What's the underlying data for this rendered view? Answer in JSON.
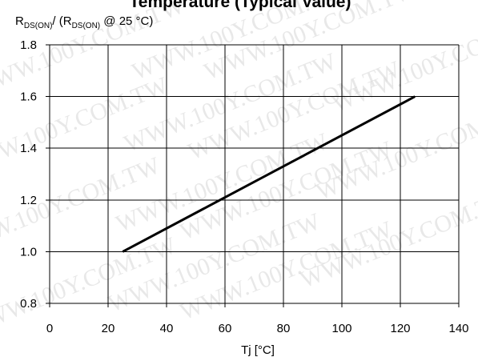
{
  "title": "Temperature (Typical Value)",
  "watermark_text": "WWW.100Y.COM.TW",
  "y_axis_title": {
    "r1": "R",
    "sub1": "DS(ON)",
    "mid": "/ (R",
    "sub2": "DS(ON)",
    "tail": " @ 25 °C)"
  },
  "x_axis_title": "Tj [°C]",
  "colors": {
    "line": "#000000",
    "grid": "#000000",
    "watermark": "#d7d7d7",
    "background": "#ffffff"
  },
  "chart_data": {
    "type": "line",
    "title": "Temperature (Typical Value)",
    "xlabel": "Tj [°C]",
    "ylabel": "RDS(ON) / (RDS(ON) @ 25 °C)",
    "xlim": [
      0,
      140
    ],
    "ylim": [
      0.8,
      1.8
    ],
    "x_ticks": [
      0,
      20,
      40,
      60,
      80,
      100,
      120,
      140
    ],
    "y_ticks": [
      0.8,
      1.0,
      1.2,
      1.4,
      1.6,
      1.8
    ],
    "x_tick_labels": [
      "0",
      "20",
      "40",
      "60",
      "80",
      "100",
      "120",
      "140"
    ],
    "y_tick_labels": [
      "0.8",
      "1.0",
      "1.2",
      "1.4",
      "1.6",
      "1.8"
    ],
    "grid": true,
    "series": [
      {
        "x": [
          25,
          125
        ],
        "y": [
          1.0,
          1.6
        ]
      }
    ]
  }
}
